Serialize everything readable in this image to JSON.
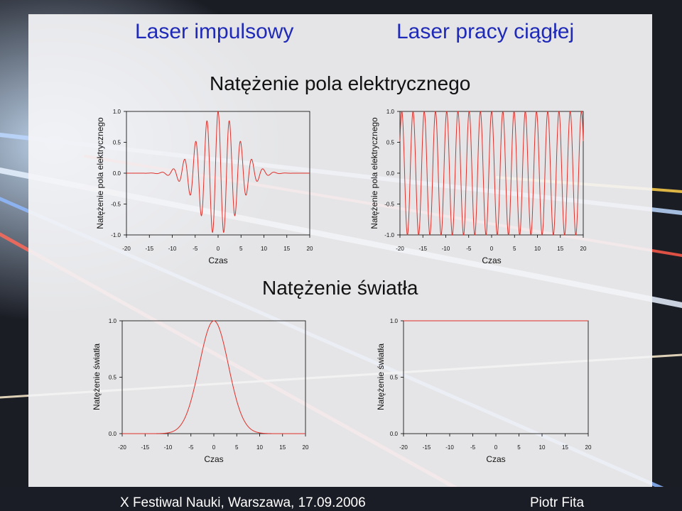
{
  "slide": {
    "left_heading": "Laser impulsowy",
    "right_heading": "Laser pracy ciągłej",
    "section_field": "Natężenie pola elektrycznego",
    "section_intensity": "Natężenie światła",
    "footer_left": "X Festiwal Nauki, Warszawa, 17.09.2006",
    "footer_right": "Piotr Fita"
  },
  "colors": {
    "heading": "#1f2bb8",
    "curve": "#e0302a",
    "axis": "#000000"
  },
  "chart_data": [
    {
      "id": "pulsed-field",
      "type": "line",
      "description_of_curve": "field = exp(-(t/6)^2) * cos(2*pi*t/2.45)",
      "xlabel": "Czas",
      "ylabel": "Natężenie pola elektrycznego",
      "xlim": [
        -20,
        20
      ],
      "ylim": [
        -1.0,
        1.0
      ],
      "xticks": [
        -20,
        -15,
        -10,
        -5,
        0,
        5,
        10,
        15,
        20
      ],
      "yticks": [
        1.0,
        0.5,
        0.0,
        -0.5,
        -1.0
      ],
      "ytick_labels": [
        "1.0",
        "0.5",
        "0.0",
        "-0.5",
        "-1.0"
      ],
      "curve": {
        "kind": "gauss_cos",
        "gauss_width": 6,
        "period": 2.45
      }
    },
    {
      "id": "cw-field",
      "type": "line",
      "description_of_curve": "field = cos(2*pi*t/2.45)",
      "xlabel": "Czas",
      "ylabel": "Natężenie pola elektrycznego",
      "xlim": [
        -20,
        20
      ],
      "ylim": [
        -1.0,
        1.0
      ],
      "xticks": [
        -20,
        -15,
        -10,
        -5,
        0,
        5,
        10,
        15,
        20
      ],
      "yticks": [
        1.0,
        0.5,
        0.0,
        -0.5,
        -1.0
      ],
      "ytick_labels": [
        "1.0",
        "0.5",
        "0.0",
        "-0.5",
        "-1.0"
      ],
      "curve": {
        "kind": "cos",
        "period": 2.45
      }
    },
    {
      "id": "pulsed-intensity",
      "type": "line",
      "description_of_curve": "intensity = exp(-(t/4.5)^2)",
      "xlabel": "Czas",
      "ylabel": "Natężenie światła",
      "xlim": [
        -20,
        20
      ],
      "ylim": [
        0.0,
        1.0
      ],
      "xticks": [
        -20,
        -15,
        -10,
        -5,
        0,
        5,
        10,
        15,
        20
      ],
      "yticks": [
        1.0,
        0.5,
        0.0
      ],
      "ytick_labels": [
        "1.0",
        "0.5",
        "0.0"
      ],
      "curve": {
        "kind": "gauss",
        "gauss_width": 4.5
      }
    },
    {
      "id": "cw-intensity",
      "type": "line",
      "description_of_curve": "intensity = 1",
      "xlabel": "Czas",
      "ylabel": "Natężenie światła",
      "xlim": [
        -20,
        20
      ],
      "ylim": [
        0.0,
        1.0
      ],
      "xticks": [
        -20,
        -15,
        -10,
        -5,
        0,
        5,
        10,
        15,
        20
      ],
      "yticks": [
        1.0,
        0.5,
        0.0
      ],
      "ytick_labels": [
        "1.0",
        "0.5",
        "0.0"
      ],
      "curve": {
        "kind": "const",
        "value": 1.0
      }
    }
  ]
}
